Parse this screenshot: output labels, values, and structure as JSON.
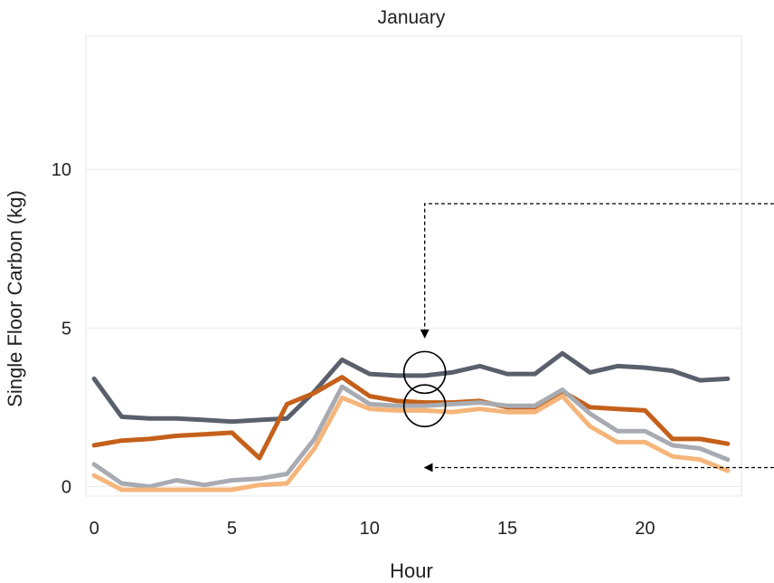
{
  "chart_data": {
    "type": "line",
    "title": "January",
    "xlabel": "Hour",
    "ylabel": "Single Floor Carbon (kg)",
    "xlim": [
      -0.3,
      23.5
    ],
    "ylim": [
      -0.3,
      14.2
    ],
    "x_ticks": [
      0,
      5,
      10,
      15,
      20
    ],
    "y_ticks": [
      0,
      5,
      10
    ],
    "grid": "horizontal",
    "x": [
      0,
      1,
      2,
      3,
      4,
      5,
      6,
      7,
      8,
      9,
      10,
      11,
      12,
      13,
      14,
      15,
      16,
      17,
      18,
      19,
      20,
      21,
      22,
      23
    ],
    "series": [
      {
        "color": "#5a606b",
        "values": [
          3.4,
          2.2,
          2.15,
          2.15,
          2.1,
          2.05,
          2.1,
          2.15,
          3.0,
          4.0,
          3.55,
          3.5,
          3.5,
          3.6,
          3.8,
          3.55,
          3.55,
          4.2,
          3.6,
          3.8,
          3.75,
          3.65,
          3.35,
          3.4
        ]
      },
      {
        "color": "#c4601a",
        "values": [
          1.3,
          1.45,
          1.5,
          1.6,
          1.65,
          1.7,
          0.9,
          2.6,
          2.95,
          3.45,
          2.85,
          2.7,
          2.65,
          2.65,
          2.7,
          2.5,
          2.5,
          3.0,
          2.5,
          2.45,
          2.4,
          1.5,
          1.5,
          1.35
        ]
      },
      {
        "color": "#a9abb2",
        "values": [
          0.7,
          0.1,
          0.0,
          0.2,
          0.05,
          0.2,
          0.25,
          0.4,
          1.5,
          3.15,
          2.6,
          2.55,
          2.55,
          2.6,
          2.65,
          2.55,
          2.55,
          3.05,
          2.3,
          1.75,
          1.75,
          1.3,
          1.2,
          0.85
        ]
      },
      {
        "color": "#f5b57a",
        "values": [
          0.35,
          -0.1,
          -0.1,
          -0.1,
          -0.1,
          -0.1,
          0.05,
          0.1,
          1.2,
          2.8,
          2.45,
          2.4,
          2.4,
          2.35,
          2.45,
          2.35,
          2.35,
          2.85,
          1.9,
          1.4,
          1.4,
          0.95,
          0.85,
          0.5
        ]
      }
    ],
    "annotations": {
      "circles": [
        {
          "x": 12,
          "y": 3.6
        },
        {
          "x": 12,
          "y": 2.55
        }
      ],
      "arrow_down_tip": {
        "x": 12,
        "y": 4.7
      },
      "arrow_left_tip": {
        "x": 12,
        "y": 0.6
      }
    }
  }
}
